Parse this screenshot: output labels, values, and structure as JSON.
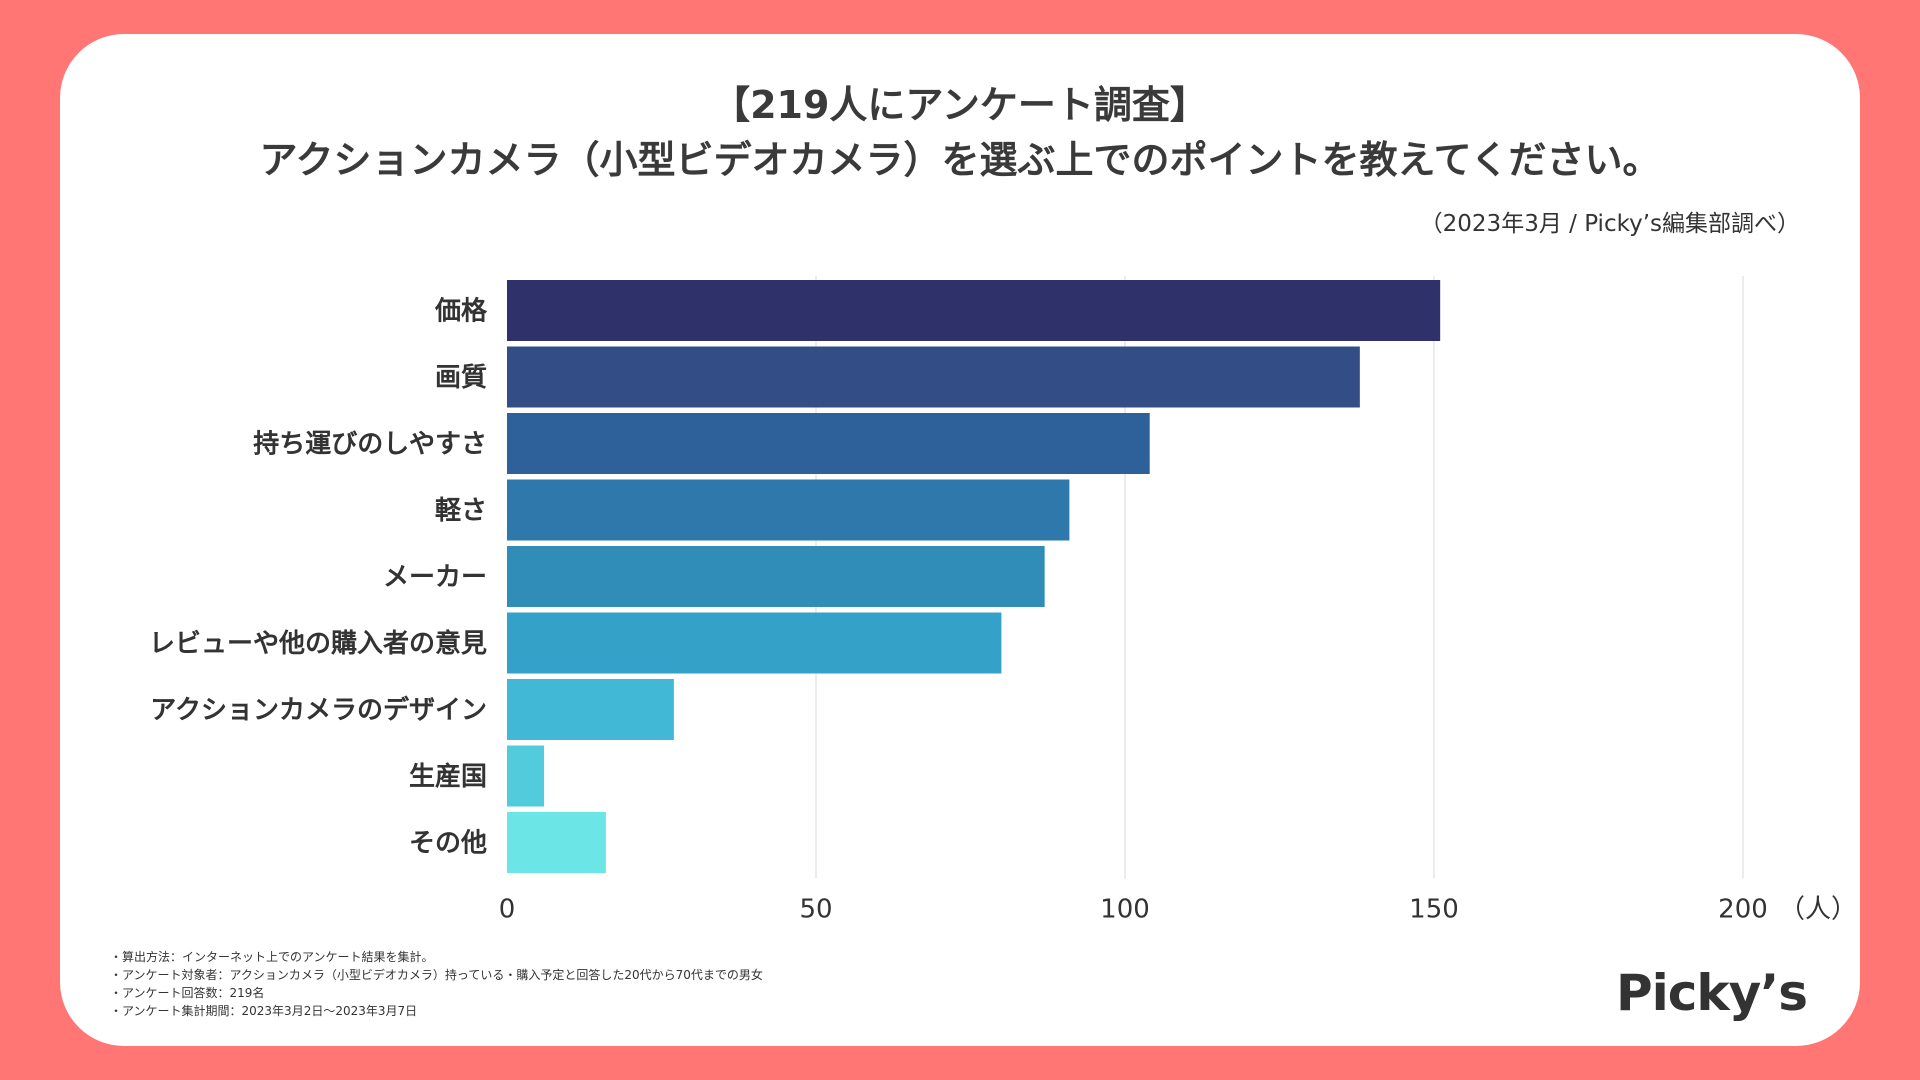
{
  "title_line1": "【219人にアンケート調査】",
  "title_line2": "アクションカメラ（小型ビデオカメラ）を選ぶ上でのポイントを教えてください。",
  "source": "（2023年3月 / Picky’s編集部調べ）",
  "chart_data": {
    "type": "bar",
    "orientation": "horizontal",
    "categories": [
      "価格",
      "画質",
      "持ち運びのしやすさ",
      "軽さ",
      "メーカー",
      "レビューや他の購入者の意見",
      "アクションカメラのデザイン",
      "生産国",
      "その他"
    ],
    "values": [
      151,
      138,
      104,
      91,
      87,
      80,
      27,
      6,
      16
    ],
    "colors": [
      "#2e316a",
      "#334d86",
      "#2e6099",
      "#2f78ab",
      "#2f8db8",
      "#34a2c8",
      "#40b8d6",
      "#52ccdc",
      "#6ce5e6"
    ],
    "xlim": [
      0,
      200
    ],
    "xticks": [
      "0",
      "50",
      "100",
      "150",
      "200"
    ],
    "xunit": "（人）",
    "grid": true
  },
  "notes": [
    "・算出方法：インターネット上でのアンケート結果を集計。",
    "・アンケート対象者：アクションカメラ（小型ビデオカメラ）持っている・購入予定と回答した20代から70代までの男女",
    "・アンケート回答数：219名",
    "・アンケート集計期間：2023年3月2日〜2023年3月7日"
  ],
  "logo": "Picky’s"
}
